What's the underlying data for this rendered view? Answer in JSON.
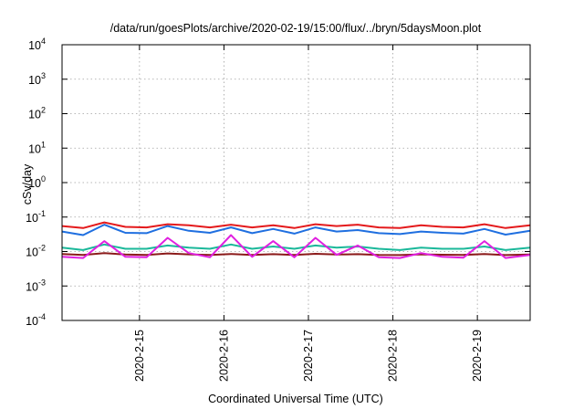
{
  "chart_data": {
    "type": "line",
    "title": "/data/run/goesPlots/archive/2020-02-19/15:00/flux/../bryn/5daysMoon.plot",
    "xlabel": "Coordinated Universal Time (UTC)",
    "ylabel": "cSv/day",
    "yscale": "log",
    "ylim": [
      0.0001,
      10000
    ],
    "xlim": [
      "2020-02-14T02:00",
      "2020-02-19T15:00"
    ],
    "grid": true,
    "legend": "none",
    "y_ticks": [
      {
        "value": 0.0001,
        "base": "10",
        "exp": "-4"
      },
      {
        "value": 0.001,
        "base": "10",
        "exp": "-3"
      },
      {
        "value": 0.01,
        "base": "10",
        "exp": "-2"
      },
      {
        "value": 0.1,
        "base": "10",
        "exp": "-1"
      },
      {
        "value": 1,
        "base": "10",
        "exp": "0"
      },
      {
        "value": 10,
        "base": "10",
        "exp": "1"
      },
      {
        "value": 100,
        "base": "10",
        "exp": "2"
      },
      {
        "value": 1000,
        "base": "10",
        "exp": "3"
      },
      {
        "value": 10000,
        "base": "10",
        "exp": "4"
      }
    ],
    "x_ticks": [
      {
        "value": "2020-02-15",
        "label": "2020-2-15"
      },
      {
        "value": "2020-02-16",
        "label": "2020-2-16"
      },
      {
        "value": "2020-02-17",
        "label": "2020-2-17"
      },
      {
        "value": "2020-02-18",
        "label": "2020-2-18"
      },
      {
        "value": "2020-02-19",
        "label": "2020-2-19"
      }
    ],
    "x": [
      "2020-02-14T02:00",
      "2020-02-14T08:00",
      "2020-02-14T14:00",
      "2020-02-14T20:00",
      "2020-02-15T02:00",
      "2020-02-15T08:00",
      "2020-02-15T14:00",
      "2020-02-15T20:00",
      "2020-02-16T02:00",
      "2020-02-16T08:00",
      "2020-02-16T14:00",
      "2020-02-16T20:00",
      "2020-02-17T02:00",
      "2020-02-17T08:00",
      "2020-02-17T14:00",
      "2020-02-17T20:00",
      "2020-02-18T02:00",
      "2020-02-18T08:00",
      "2020-02-18T14:00",
      "2020-02-18T20:00",
      "2020-02-19T02:00",
      "2020-02-19T08:00",
      "2020-02-19T15:00"
    ],
    "series": [
      {
        "color": "#e41a1c",
        "values": [
          0.055,
          0.048,
          0.07,
          0.052,
          0.05,
          0.062,
          0.058,
          0.05,
          0.06,
          0.05,
          0.058,
          0.048,
          0.062,
          0.055,
          0.06,
          0.05,
          0.048,
          0.058,
          0.052,
          0.05,
          0.062,
          0.048,
          0.058
        ]
      },
      {
        "color": "#1f6fe0",
        "values": [
          0.038,
          0.03,
          0.06,
          0.035,
          0.034,
          0.055,
          0.04,
          0.035,
          0.05,
          0.034,
          0.045,
          0.033,
          0.05,
          0.038,
          0.042,
          0.034,
          0.032,
          0.038,
          0.035,
          0.033,
          0.045,
          0.031,
          0.04
        ]
      },
      {
        "color": "#1bb89a",
        "values": [
          0.013,
          0.011,
          0.016,
          0.012,
          0.012,
          0.015,
          0.013,
          0.012,
          0.016,
          0.012,
          0.014,
          0.012,
          0.015,
          0.013,
          0.014,
          0.012,
          0.011,
          0.013,
          0.012,
          0.012,
          0.014,
          0.011,
          0.013
        ]
      },
      {
        "color": "#8b1a1a",
        "values": [
          0.0085,
          0.008,
          0.009,
          0.0082,
          0.008,
          0.0088,
          0.0083,
          0.008,
          0.0085,
          0.008,
          0.0084,
          0.008,
          0.0086,
          0.0082,
          0.0084,
          0.008,
          0.0079,
          0.0083,
          0.0081,
          0.008,
          0.0085,
          0.0079,
          0.0082
        ]
      },
      {
        "color": "#e020e0",
        "values": [
          0.007,
          0.0065,
          0.02,
          0.007,
          0.0068,
          0.025,
          0.009,
          0.0068,
          0.03,
          0.007,
          0.02,
          0.0068,
          0.025,
          0.008,
          0.015,
          0.0068,
          0.0065,
          0.009,
          0.007,
          0.0066,
          0.02,
          0.0065,
          0.008
        ]
      }
    ]
  }
}
